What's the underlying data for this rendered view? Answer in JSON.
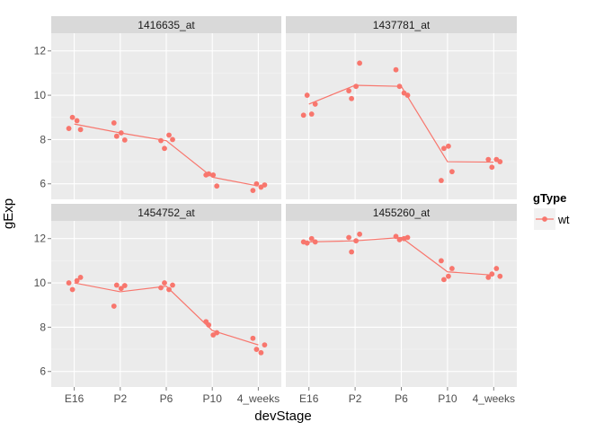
{
  "chart_data": {
    "type": "scatter",
    "xlabel": "devStage",
    "ylabel": "gExp",
    "x_categories": [
      "E16",
      "P2",
      "P6",
      "P10",
      "4_weeks"
    ],
    "ylim": [
      5.3,
      12.8
    ],
    "yticks": [
      6,
      8,
      10,
      12
    ],
    "grid": true,
    "legend": {
      "title": "gType",
      "placement": "right",
      "entries": [
        {
          "name": "wt",
          "color": "#F8766D"
        }
      ]
    },
    "series_color": "#F8766D",
    "panels": [
      {
        "title": "1416635_at",
        "line": [
          8.7,
          8.3,
          7.95,
          6.3,
          5.9
        ],
        "points": [
          [
            "E16",
            8.5
          ],
          [
            "E16",
            9.0
          ],
          [
            "E16",
            8.85
          ],
          [
            "E16",
            8.45
          ],
          [
            "P2",
            8.15
          ],
          [
            "P2",
            7.98
          ],
          [
            "P2",
            8.75
          ],
          [
            "P2",
            8.3
          ],
          [
            "P6",
            7.95
          ],
          [
            "P6",
            7.6
          ],
          [
            "P6",
            8.2
          ],
          [
            "P6",
            8.0
          ],
          [
            "P10",
            6.45
          ],
          [
            "P10",
            5.9
          ],
          [
            "P10",
            6.4
          ],
          [
            "P10",
            6.4
          ],
          [
            "4_weeks",
            5.7
          ],
          [
            "4_weeks",
            6.0
          ],
          [
            "4_weeks",
            5.85
          ],
          [
            "4_weeks",
            5.95
          ]
        ]
      },
      {
        "title": "1437781_at",
        "line": [
          9.6,
          10.45,
          10.4,
          7.0,
          6.98
        ],
        "points": [
          [
            "E16",
            9.1
          ],
          [
            "E16",
            10.0
          ],
          [
            "E16",
            9.15
          ],
          [
            "E16",
            9.6
          ],
          [
            "P2",
            9.85
          ],
          [
            "P2",
            11.45
          ],
          [
            "P2",
            10.2
          ],
          [
            "P2",
            10.4
          ],
          [
            "P6",
            11.15
          ],
          [
            "P6",
            10.4
          ],
          [
            "P6",
            10.1
          ],
          [
            "P6",
            10.0
          ],
          [
            "P10",
            7.6
          ],
          [
            "P10",
            6.55
          ],
          [
            "P10",
            6.15
          ],
          [
            "P10",
            7.7
          ],
          [
            "4_weeks",
            7.1
          ],
          [
            "4_weeks",
            6.75
          ],
          [
            "4_weeks",
            7.1
          ],
          [
            "4_weeks",
            7.0
          ]
        ]
      },
      {
        "title": "1454752_at",
        "line": [
          10.0,
          9.6,
          9.85,
          7.85,
          7.2
        ],
        "points": [
          [
            "E16",
            10.0
          ],
          [
            "E16",
            9.7
          ],
          [
            "E16",
            10.1
          ],
          [
            "E16",
            10.25
          ],
          [
            "P2",
            9.9
          ],
          [
            "P2",
            9.88
          ],
          [
            "P2",
            8.95
          ],
          [
            "P2",
            9.75
          ],
          [
            "P6",
            9.78
          ],
          [
            "P6",
            10.0
          ],
          [
            "P6",
            9.7
          ],
          [
            "P6",
            9.9
          ],
          [
            "P10",
            8.1
          ],
          [
            "P10",
            7.75
          ],
          [
            "P10",
            8.25
          ],
          [
            "P10",
            7.65
          ],
          [
            "4_weeks",
            7.5
          ],
          [
            "4_weeks",
            7.0
          ],
          [
            "4_weeks",
            6.85
          ],
          [
            "4_weeks",
            7.2
          ]
        ]
      },
      {
        "title": "1455260_at",
        "line": [
          11.85,
          11.9,
          12.05,
          10.5,
          10.35
        ],
        "points": [
          [
            "E16",
            11.85
          ],
          [
            "E16",
            11.8
          ],
          [
            "E16",
            12.0
          ],
          [
            "E16",
            11.85
          ],
          [
            "P2",
            11.4
          ],
          [
            "P2",
            12.2
          ],
          [
            "P2",
            12.05
          ],
          [
            "P2",
            11.9
          ],
          [
            "P6",
            12.1
          ],
          [
            "P6",
            11.95
          ],
          [
            "P6",
            12.0
          ],
          [
            "P6",
            12.05
          ],
          [
            "P10",
            10.15
          ],
          [
            "P10",
            10.65
          ],
          [
            "P10",
            11.0
          ],
          [
            "P10",
            10.3
          ],
          [
            "4_weeks",
            10.25
          ],
          [
            "4_weeks",
            10.4
          ],
          [
            "4_weeks",
            10.65
          ],
          [
            "4_weeks",
            10.3
          ]
        ]
      }
    ]
  }
}
